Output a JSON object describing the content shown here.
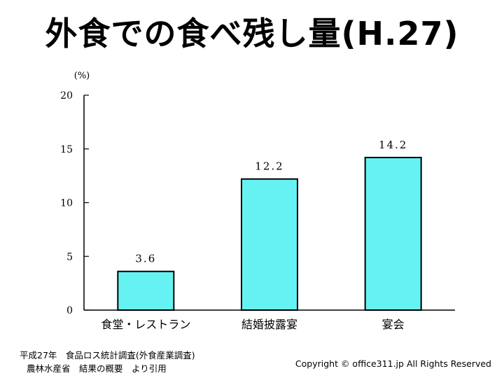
{
  "title": "外食での食べ残し量(H.27)",
  "chart_data": {
    "type": "bar",
    "categories": [
      "食堂・レストラン",
      "結婚披露宴",
      "宴会"
    ],
    "values": [
      3.6,
      12.2,
      14.2
    ],
    "value_labels": [
      "3.6",
      "12.2",
      "14.2"
    ],
    "ylabel": "(%)",
    "ylim": [
      0,
      20
    ],
    "yticks": [
      0,
      5,
      10,
      15,
      20
    ],
    "grid": false,
    "bar_color": "#66f2f2",
    "bar_edge_color": "#000000"
  },
  "source": {
    "line1": "平成27年　食品ロス統計調査(外食産業調査)",
    "line2": "農林水産省　結果の概要　より引用"
  },
  "copyright": "Copyright © office311.jp All Rights Reserved"
}
